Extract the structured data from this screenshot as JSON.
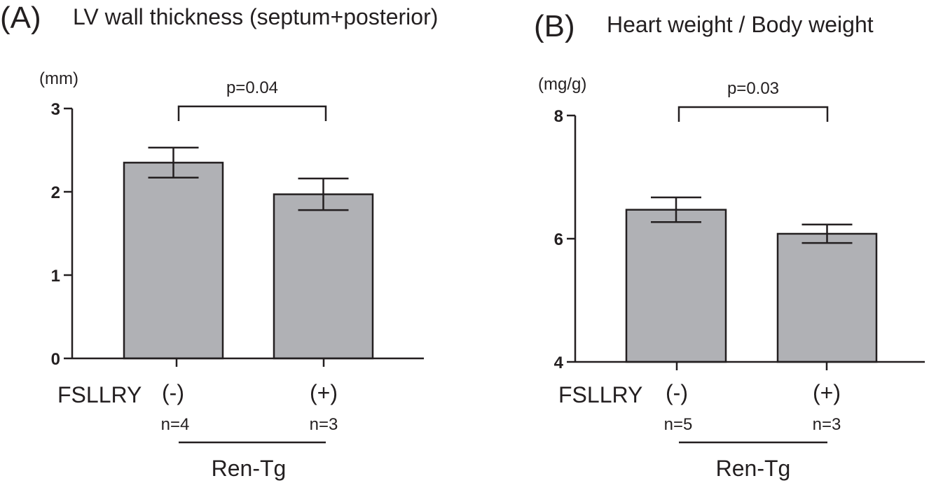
{
  "colors": {
    "bar_fill": "#b0b1b5",
    "ink": "#231f20",
    "background": "#ffffff"
  },
  "chart_data": [
    {
      "type": "bar",
      "panel": "(A)",
      "title": "LV wall thickness (septum+posterior)",
      "ylabel": "(mm)",
      "ylim": [
        0,
        3
      ],
      "yticks": [
        0,
        1,
        2,
        3
      ],
      "ytick_labels": [
        "0",
        "1",
        "2",
        "3"
      ],
      "group_label": "FSLLRY",
      "categories": [
        "(-)",
        "(+)"
      ],
      "n_labels": [
        "n=4",
        "n=3"
      ],
      "values": [
        2.35,
        1.97
      ],
      "errors": [
        0.18,
        0.19
      ],
      "bottom_label": "Ren-Tg",
      "significance": "p=0.04"
    },
    {
      "type": "bar",
      "panel": "(B)",
      "title": "Heart weight / Body weight",
      "ylabel": "(mg/g)",
      "ylim": [
        4,
        8
      ],
      "yticks": [
        4,
        6,
        8
      ],
      "ytick_labels": [
        "4",
        "6",
        "8"
      ],
      "group_label": "FSLLRY",
      "categories": [
        "(-)",
        "(+)"
      ],
      "n_labels": [
        "n=5",
        "n=3"
      ],
      "values": [
        6.47,
        6.08
      ],
      "errors": [
        0.2,
        0.15
      ],
      "bottom_label": "Ren-Tg",
      "significance": "p=0.03"
    }
  ]
}
